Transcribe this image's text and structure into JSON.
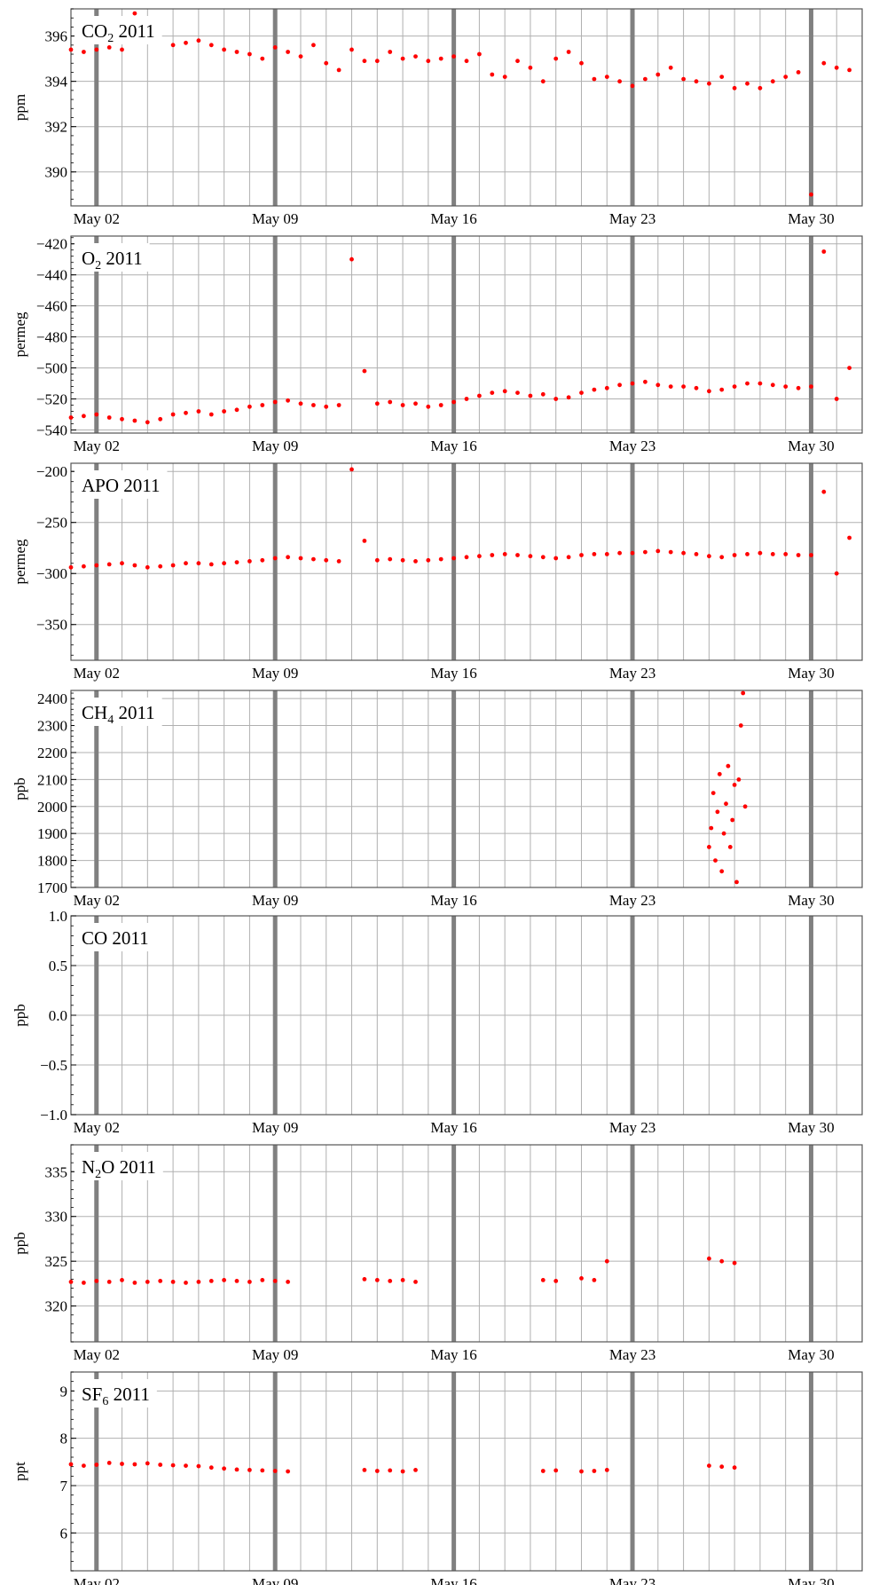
{
  "chart_data": [
    {
      "type": "scatter",
      "title_main": "CO",
      "title_sub": "2",
      "title_rest": " 2011",
      "ylabel": "ppm",
      "ylim": [
        388.5,
        397.2
      ],
      "yticks": [
        390,
        392,
        394,
        396
      ],
      "ytick_labels": [
        "390",
        "392",
        "394",
        "396"
      ],
      "xlim": [
        "2011-05-01",
        "2011-06-01"
      ],
      "x_tick_labels": [
        "May 02",
        "May 09",
        "May 16",
        "May 23",
        "May 30"
      ],
      "grid": true,
      "series": [
        {
          "color": "#ff0000",
          "x": [
            "2011-05-01T00:00",
            "2011-05-01T12:00",
            "2011-05-02T00:00",
            "2011-05-02T12:00",
            "2011-05-03T00:00",
            "2011-05-03T12:00",
            "2011-05-04T00:00",
            "2011-05-04T12:00",
            "2011-05-05T00:00",
            "2011-05-05T12:00",
            "2011-05-06T00:00",
            "2011-05-06T12:00",
            "2011-05-07T00:00",
            "2011-05-07T12:00",
            "2011-05-08T00:00",
            "2011-05-08T12:00",
            "2011-05-09T00:00",
            "2011-05-09T12:00",
            "2011-05-10T00:00",
            "2011-05-10T12:00",
            "2011-05-11T00:00",
            "2011-05-11T12:00",
            "2011-05-12T00:00",
            "2011-05-12T12:00",
            "2011-05-13T00:00",
            "2011-05-13T12:00",
            "2011-05-14T00:00",
            "2011-05-14T12:00",
            "2011-05-15T00:00",
            "2011-05-15T12:00",
            "2011-05-16T00:00",
            "2011-05-16T12:00",
            "2011-05-17T00:00",
            "2011-05-17T12:00",
            "2011-05-18T00:00",
            "2011-05-18T12:00",
            "2011-05-19T00:00",
            "2011-05-19T12:00",
            "2011-05-20T00:00",
            "2011-05-20T12:00",
            "2011-05-21T00:00",
            "2011-05-21T12:00",
            "2011-05-22T00:00",
            "2011-05-22T12:00",
            "2011-05-23T00:00",
            "2011-05-23T12:00",
            "2011-05-24T00:00",
            "2011-05-24T12:00",
            "2011-05-25T00:00",
            "2011-05-25T12:00",
            "2011-05-26T00:00",
            "2011-05-26T12:00",
            "2011-05-27T00:00",
            "2011-05-27T12:00",
            "2011-05-28T00:00",
            "2011-05-28T12:00",
            "2011-05-29T00:00",
            "2011-05-29T12:00",
            "2011-05-30T00:00",
            "2011-05-30T12:00",
            "2011-05-31T00:00",
            "2011-05-31T12:00"
          ],
          "y": [
            395.4,
            395.3,
            395.4,
            395.5,
            395.4,
            397.0,
            null,
            null,
            395.6,
            395.7,
            395.8,
            395.6,
            395.4,
            395.3,
            395.2,
            395.0,
            395.5,
            395.3,
            395.1,
            395.6,
            394.8,
            394.5,
            395.4,
            394.9,
            394.9,
            395.3,
            395.0,
            395.1,
            394.9,
            395.0,
            395.1,
            394.9,
            395.2,
            394.3,
            394.2,
            394.9,
            394.6,
            394.0,
            395.0,
            395.3,
            394.8,
            394.1,
            394.2,
            394.0,
            393.8,
            394.1,
            394.3,
            394.6,
            394.1,
            394.0,
            393.9,
            394.2,
            393.7,
            393.9,
            393.7,
            394.0,
            394.2,
            394.4,
            389.0,
            394.8,
            394.6,
            394.5
          ]
        }
      ]
    },
    {
      "type": "scatter",
      "title_main": "O",
      "title_sub": "2",
      "title_rest": " 2011",
      "ylabel": "permeg",
      "ylim": [
        -542,
        -415
      ],
      "yticks": [
        -540,
        -520,
        -500,
        -480,
        -460,
        -440,
        -420
      ],
      "ytick_labels": [
        "−540",
        "−520",
        "−500",
        "−480",
        "−460",
        "−440",
        "−420"
      ],
      "xlim": [
        "2011-05-01",
        "2011-06-01"
      ],
      "x_tick_labels": [
        "May 02",
        "May 09",
        "May 16",
        "May 23",
        "May 30"
      ],
      "grid": true,
      "series": [
        {
          "color": "#ff0000",
          "x": [
            "2011-05-01T00:00",
            "2011-05-01T12:00",
            "2011-05-02T00:00",
            "2011-05-02T12:00",
            "2011-05-03T00:00",
            "2011-05-03T12:00",
            "2011-05-04T00:00",
            "2011-05-04T12:00",
            "2011-05-05T00:00",
            "2011-05-05T12:00",
            "2011-05-06T00:00",
            "2011-05-06T12:00",
            "2011-05-07T00:00",
            "2011-05-07T12:00",
            "2011-05-08T00:00",
            "2011-05-08T12:00",
            "2011-05-09T00:00",
            "2011-05-09T12:00",
            "2011-05-10T00:00",
            "2011-05-10T12:00",
            "2011-05-11T00:00",
            "2011-05-11T12:00",
            "2011-05-12T00:00",
            "2011-05-12T12:00",
            "2011-05-13T00:00",
            "2011-05-13T12:00",
            "2011-05-14T00:00",
            "2011-05-14T12:00",
            "2011-05-15T00:00",
            "2011-05-15T12:00",
            "2011-05-16T00:00",
            "2011-05-16T12:00",
            "2011-05-17T00:00",
            "2011-05-17T12:00",
            "2011-05-18T00:00",
            "2011-05-18T12:00",
            "2011-05-19T00:00",
            "2011-05-19T12:00",
            "2011-05-20T00:00",
            "2011-05-20T12:00",
            "2011-05-21T00:00",
            "2011-05-21T12:00",
            "2011-05-22T00:00",
            "2011-05-22T12:00",
            "2011-05-23T00:00",
            "2011-05-23T12:00",
            "2011-05-24T00:00",
            "2011-05-24T12:00",
            "2011-05-25T00:00",
            "2011-05-25T12:00",
            "2011-05-26T00:00",
            "2011-05-26T12:00",
            "2011-05-27T00:00",
            "2011-05-27T12:00",
            "2011-05-28T00:00",
            "2011-05-28T12:00",
            "2011-05-29T00:00",
            "2011-05-29T12:00",
            "2011-05-30T00:00",
            "2011-05-30T12:00",
            "2011-05-31T00:00",
            "2011-05-31T12:00"
          ],
          "y": [
            -532,
            -531,
            -530,
            -532,
            -533,
            -534,
            -535,
            -533,
            -530,
            -529,
            -528,
            -530,
            -528,
            -527,
            -525,
            -524,
            -522,
            -521,
            -523,
            -524,
            -525,
            -524,
            -430,
            -502,
            -523,
            -522,
            -524,
            -523,
            -525,
            -524,
            -522,
            -520,
            -518,
            -516,
            -515,
            -516,
            -518,
            -517,
            -520,
            -519,
            -516,
            -514,
            -513,
            -511,
            -510,
            -509,
            -511,
            -512,
            -512,
            -513,
            -515,
            -514,
            -512,
            -510,
            -510,
            -511,
            -512,
            -513,
            -512,
            -425,
            -520,
            -500
          ]
        }
      ]
    },
    {
      "type": "scatter",
      "title_main": "APO 2011",
      "title_sub": "",
      "title_rest": "",
      "ylabel": "permeg",
      "ylim": [
        -385,
        -192
      ],
      "yticks": [
        -350,
        -300,
        -250,
        -200
      ],
      "ytick_labels": [
        "−350",
        "−300",
        "−250",
        "−200"
      ],
      "xlim": [
        "2011-05-01",
        "2011-06-01"
      ],
      "x_tick_labels": [
        "May 02",
        "May 09",
        "May 16",
        "May 23",
        "May 30"
      ],
      "grid": true,
      "series": [
        {
          "color": "#ff0000",
          "x": [
            "2011-05-01T00:00",
            "2011-05-01T12:00",
            "2011-05-02T00:00",
            "2011-05-02T12:00",
            "2011-05-03T00:00",
            "2011-05-03T12:00",
            "2011-05-04T00:00",
            "2011-05-04T12:00",
            "2011-05-05T00:00",
            "2011-05-05T12:00",
            "2011-05-06T00:00",
            "2011-05-06T12:00",
            "2011-05-07T00:00",
            "2011-05-07T12:00",
            "2011-05-08T00:00",
            "2011-05-08T12:00",
            "2011-05-09T00:00",
            "2011-05-09T12:00",
            "2011-05-10T00:00",
            "2011-05-10T12:00",
            "2011-05-11T00:00",
            "2011-05-11T12:00",
            "2011-05-12T00:00",
            "2011-05-12T12:00",
            "2011-05-13T00:00",
            "2011-05-13T12:00",
            "2011-05-14T00:00",
            "2011-05-14T12:00",
            "2011-05-15T00:00",
            "2011-05-15T12:00",
            "2011-05-16T00:00",
            "2011-05-16T12:00",
            "2011-05-17T00:00",
            "2011-05-17T12:00",
            "2011-05-18T00:00",
            "2011-05-18T12:00",
            "2011-05-19T00:00",
            "2011-05-19T12:00",
            "2011-05-20T00:00",
            "2011-05-20T12:00",
            "2011-05-21T00:00",
            "2011-05-21T12:00",
            "2011-05-22T00:00",
            "2011-05-22T12:00",
            "2011-05-23T00:00",
            "2011-05-23T12:00",
            "2011-05-24T00:00",
            "2011-05-24T12:00",
            "2011-05-25T00:00",
            "2011-05-25T12:00",
            "2011-05-26T00:00",
            "2011-05-26T12:00",
            "2011-05-27T00:00",
            "2011-05-27T12:00",
            "2011-05-28T00:00",
            "2011-05-28T12:00",
            "2011-05-29T00:00",
            "2011-05-29T12:00",
            "2011-05-30T00:00",
            "2011-05-30T12:00",
            "2011-05-31T00:00",
            "2011-05-31T12:00"
          ],
          "y": [
            -294,
            -293,
            -292,
            -291,
            -290,
            -292,
            -294,
            -293,
            -292,
            -290,
            -290,
            -291,
            -290,
            -289,
            -288,
            -287,
            -285,
            -284,
            -285,
            -286,
            -287,
            -288,
            -198,
            -268,
            -287,
            -286,
            -287,
            -288,
            -287,
            -286,
            -285,
            -284,
            -283,
            -282,
            -281,
            -282,
            -283,
            -284,
            -285,
            -284,
            -282,
            -281,
            -281,
            -280,
            -280,
            -279,
            -278,
            -279,
            -280,
            -281,
            -283,
            -284,
            -282,
            -281,
            -280,
            -281,
            -281,
            -282,
            -282,
            -220,
            -300,
            -265
          ]
        }
      ]
    },
    {
      "type": "scatter",
      "title_main": "CH",
      "title_sub": "4",
      "title_rest": " 2011",
      "ylabel": "ppb",
      "ylim": [
        1700,
        2430
      ],
      "yticks": [
        1700,
        1800,
        1900,
        2000,
        2100,
        2200,
        2300,
        2400
      ],
      "ytick_labels": [
        "1700",
        "1800",
        "1900",
        "2000",
        "2100",
        "2200",
        "2300",
        "2400"
      ],
      "xlim": [
        "2011-05-01",
        "2011-06-01"
      ],
      "x_tick_labels": [
        "May 02",
        "May 09",
        "May 16",
        "May 23",
        "May 30"
      ],
      "grid": true,
      "series": [
        {
          "color": "#ff0000",
          "x": [
            "2011-05-26T00:00",
            "2011-05-26T02:00",
            "2011-05-26T04:00",
            "2011-05-26T06:00",
            "2011-05-26T08:00",
            "2011-05-26T10:00",
            "2011-05-26T12:00",
            "2011-05-26T14:00",
            "2011-05-26T16:00",
            "2011-05-26T18:00",
            "2011-05-26T20:00",
            "2011-05-26T22:00",
            "2011-05-27T00:00",
            "2011-05-27T02:00",
            "2011-05-27T04:00",
            "2011-05-27T06:00",
            "2011-05-27T08:00",
            "2011-05-27T10:00"
          ],
          "y": [
            1850,
            1920,
            2050,
            1800,
            1980,
            2120,
            1760,
            1900,
            2010,
            2150,
            1850,
            1950,
            2080,
            1720,
            2100,
            2300,
            2420,
            2000
          ]
        }
      ]
    },
    {
      "type": "scatter",
      "title_main": "CO 2011",
      "title_sub": "",
      "title_rest": "",
      "ylabel": "ppb",
      "ylim": [
        -1.0,
        1.0
      ],
      "yticks": [
        -1.0,
        -0.5,
        0.0,
        0.5,
        1.0
      ],
      "ytick_labels": [
        "−1.0",
        "−0.5",
        "0.0",
        "0.5",
        "1.0"
      ],
      "xlim": [
        "2011-05-01",
        "2011-06-01"
      ],
      "x_tick_labels": [
        "May 02",
        "May 09",
        "May 16",
        "May 23",
        "May 30"
      ],
      "grid": true,
      "series": [
        {
          "color": "#ff0000",
          "x": [],
          "y": []
        }
      ]
    },
    {
      "type": "scatter",
      "title_main": "N",
      "title_sub": "2",
      "title_rest": "O 2011",
      "ylabel": "ppb",
      "ylim": [
        316,
        338
      ],
      "yticks": [
        320,
        325,
        330,
        335
      ],
      "ytick_labels": [
        "320",
        "325",
        "330",
        "335"
      ],
      "xlim": [
        "2011-05-01",
        "2011-06-01"
      ],
      "x_tick_labels": [
        "May 02",
        "May 09",
        "May 16",
        "May 23",
        "May 30"
      ],
      "grid": true,
      "series": [
        {
          "color": "#ff0000",
          "x": [
            "2011-05-01T00:00",
            "2011-05-01T12:00",
            "2011-05-02T00:00",
            "2011-05-02T12:00",
            "2011-05-03T00:00",
            "2011-05-03T12:00",
            "2011-05-04T00:00",
            "2011-05-04T12:00",
            "2011-05-05T00:00",
            "2011-05-05T12:00",
            "2011-05-06T00:00",
            "2011-05-06T12:00",
            "2011-05-07T00:00",
            "2011-05-07T12:00",
            "2011-05-08T00:00",
            "2011-05-08T12:00",
            "2011-05-09T00:00",
            "2011-05-09T12:00",
            "2011-05-12T12:00",
            "2011-05-13T00:00",
            "2011-05-13T12:00",
            "2011-05-14T00:00",
            "2011-05-14T12:00",
            "2011-05-19T12:00",
            "2011-05-20T00:00",
            "2011-05-21T00:00",
            "2011-05-21T12:00",
            "2011-05-22T00:00",
            "2011-05-26T00:00",
            "2011-05-26T12:00",
            "2011-05-27T00:00"
          ],
          "y": [
            322.7,
            322.6,
            322.8,
            322.7,
            322.9,
            322.6,
            322.7,
            322.8,
            322.7,
            322.6,
            322.7,
            322.8,
            322.9,
            322.8,
            322.7,
            322.9,
            322.8,
            322.7,
            323.0,
            322.9,
            322.8,
            322.9,
            322.7,
            322.9,
            322.8,
            323.1,
            322.9,
            325.0,
            325.3,
            325.0,
            324.8
          ]
        }
      ]
    },
    {
      "type": "scatter",
      "title_main": "SF",
      "title_sub": "6",
      "title_rest": " 2011",
      "ylabel": "ppt",
      "ylim": [
        5.2,
        9.4
      ],
      "yticks": [
        6,
        7,
        8,
        9
      ],
      "ytick_labels": [
        "6",
        "7",
        "8",
        "9"
      ],
      "xlim": [
        "2011-05-01",
        "2011-06-01"
      ],
      "x_tick_labels": [
        "May 02",
        "May 09",
        "May 16",
        "May 23",
        "May 30"
      ],
      "grid": true,
      "series": [
        {
          "color": "#ff0000",
          "x": [
            "2011-05-01T00:00",
            "2011-05-01T12:00",
            "2011-05-02T00:00",
            "2011-05-02T12:00",
            "2011-05-03T00:00",
            "2011-05-03T12:00",
            "2011-05-04T00:00",
            "2011-05-04T12:00",
            "2011-05-05T00:00",
            "2011-05-05T12:00",
            "2011-05-06T00:00",
            "2011-05-06T12:00",
            "2011-05-07T00:00",
            "2011-05-07T12:00",
            "2011-05-08T00:00",
            "2011-05-08T12:00",
            "2011-05-09T00:00",
            "2011-05-09T12:00",
            "2011-05-12T12:00",
            "2011-05-13T00:00",
            "2011-05-13T12:00",
            "2011-05-14T00:00",
            "2011-05-14T12:00",
            "2011-05-19T12:00",
            "2011-05-20T00:00",
            "2011-05-21T00:00",
            "2011-05-21T12:00",
            "2011-05-22T00:00",
            "2011-05-26T00:00",
            "2011-05-26T12:00",
            "2011-05-27T00:00"
          ],
          "y": [
            7.45,
            7.42,
            7.44,
            7.48,
            7.46,
            7.45,
            7.47,
            7.44,
            7.43,
            7.42,
            7.41,
            7.38,
            7.36,
            7.34,
            7.33,
            7.32,
            7.31,
            7.3,
            7.33,
            7.31,
            7.32,
            7.3,
            7.33,
            7.31,
            7.32,
            7.3,
            7.31,
            7.33,
            7.42,
            7.4,
            7.38
          ]
        }
      ]
    }
  ],
  "style": {
    "point_color": "#ff0000",
    "grid_color": "#b0b0b0",
    "thick_grid_color": "#808080",
    "frame_color": "#555555"
  }
}
